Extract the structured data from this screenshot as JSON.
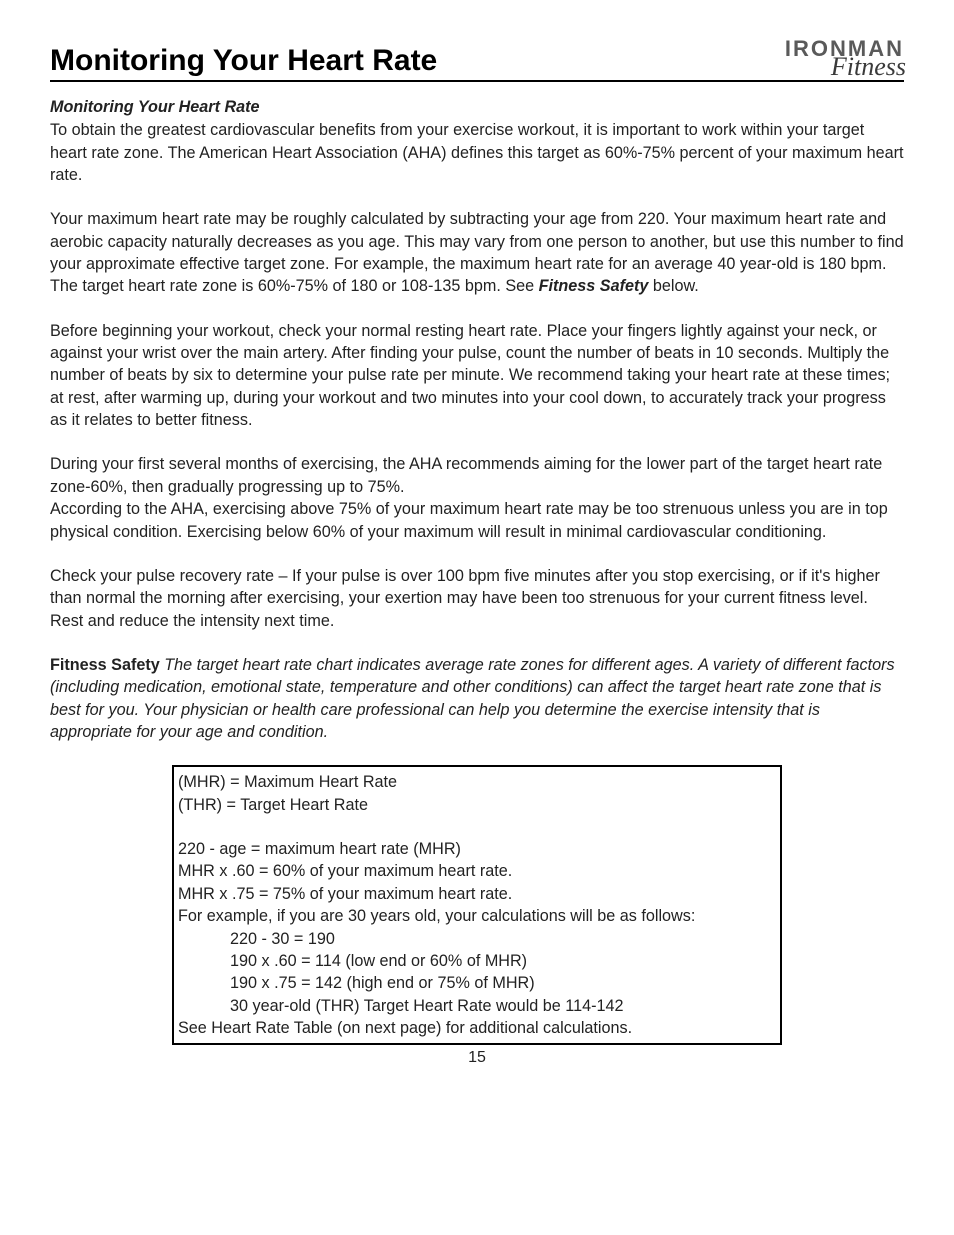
{
  "header": {
    "title": "Monitoring Your Heart Rate",
    "logo_top": "IRONMAN",
    "logo_bottom": "Fitness"
  },
  "body": {
    "subheading": "Monitoring Your Heart Rate",
    "p1": "To obtain the greatest cardiovascular benefits from your exercise workout, it is important to work within your target heart rate zone. The American Heart Association (AHA) defines this target as 60%-75% percent of your maximum heart rate.",
    "p2a": "Your maximum heart rate may be roughly calculated by subtracting your age from 220. Your maximum heart rate and aerobic capacity naturally decreases as you age. This may vary from one person to another, but use this number to find your approximate effective target zone. For example, the maximum heart rate for an average 40 year-old is 180 bpm. The target heart rate zone is 60%-75% of 180 or 108-135 bpm. See ",
    "p2b_boldital": "Fitness Safety",
    "p2c": " below.",
    "p3": "Before beginning your workout, check your normal resting heart rate. Place your fingers lightly against your neck, or against your wrist over the main artery. After finding your pulse, count the number of beats in 10 seconds. Multiply the number of beats by six to determine your pulse rate per minute. We recommend taking your heart rate at these times; at rest, after warming up, during your workout and two minutes into your cool down, to accurately track your progress as it relates to better fitness.",
    "p4": "During your first several months of exercising, the AHA recommends aiming for the lower part of the target heart rate zone-60%, then gradually progressing up to 75%.",
    "p5": "According to the AHA, exercising above 75% of your maximum heart rate may be too strenuous unless you are in top physical condition. Exercising below 60% of your maximum will result in minimal cardiovascular conditioning.",
    "p6": "Check your pulse recovery rate – If your pulse is over 100 bpm five minutes after you stop exercising, or if it's higher than normal the morning after exercising, your exertion may have been too strenuous for your current fitness level. Rest and reduce the intensity next time.",
    "p7a_bold": "Fitness Safety",
    "p7b_italic": "  The target heart rate chart indicates average rate zones for different ages. A variety of different factors (including medication, emotional state, temperature and other conditions) can affect the target heart rate zone that is best for you. Your physician or health care professional can help you determine the exercise intensity that is appropriate for your age and condition."
  },
  "formula": {
    "l1": "(MHR) = Maximum Heart Rate",
    "l2": "(THR) = Target Heart Rate",
    "l3": "220 - age = maximum heart rate (MHR)",
    "l4": "MHR x .60 = 60% of your maximum heart rate.",
    "l5": "MHR x .75 = 75% of your maximum heart rate.",
    "l6": "For example, if you are 30 years old, your calculations will be as follows:",
    "l7": "220 - 30 = 190",
    "l8": "190 x .60 = 114 (low end or 60% of MHR)",
    "l9": "190 x .75 = 142 (high end or 75% of MHR)",
    "l10": "30 year-old (THR) Target Heart Rate would be 114-142",
    "l11": "See Heart Rate Table (on next page) for additional calculations."
  },
  "page_number": "15"
}
